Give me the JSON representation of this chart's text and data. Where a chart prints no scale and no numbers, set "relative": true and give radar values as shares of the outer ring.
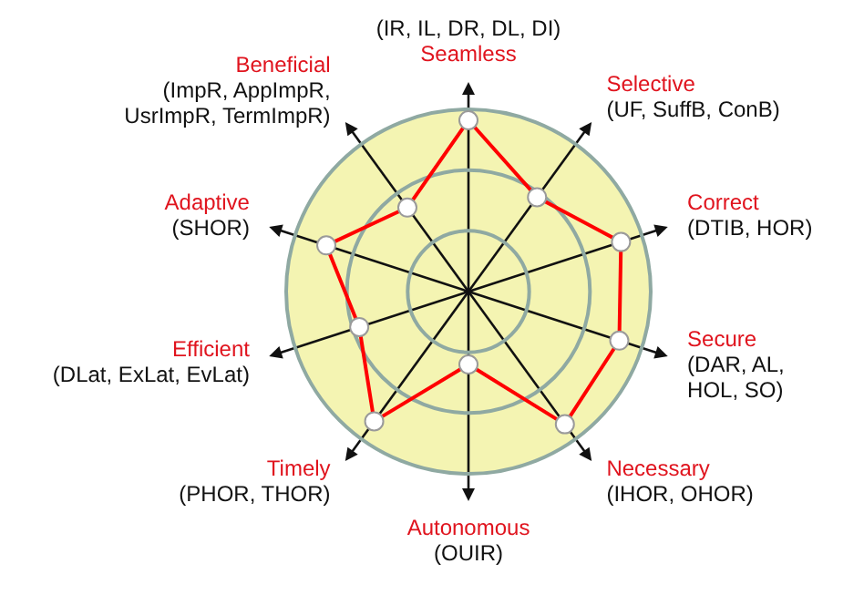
{
  "chart_data": {
    "type": "radar",
    "relative": true,
    "marker": "circle",
    "grid": true,
    "categories": [
      "Seamless",
      "Selective",
      "Correct",
      "Secure",
      "Necessary",
      "Autonomous",
      "Timely",
      "Efficient",
      "Adaptive",
      "Beneficial"
    ],
    "series": [
      {
        "color": "#ff0000",
        "values": [
          0.94,
          0.64,
          0.88,
          0.87,
          0.9,
          0.4,
          0.88,
          0.63,
          0.82,
          0.57
        ]
      }
    ],
    "annotations": [
      {
        "text": "(IR, IL, DR, DL, DI)",
        "x": "Seamless"
      },
      {
        "text": "(UF, SuffB, ConB)",
        "x": "Selective"
      },
      {
        "text": "(DTIB, HOR)",
        "x": "Correct"
      },
      {
        "text": "(DAR, AL,\nHOL, SO)",
        "x": "Secure"
      },
      {
        "text": "(IHOR, OHOR)",
        "x": "Necessary"
      },
      {
        "text": "(OUIR)",
        "x": "Autonomous"
      },
      {
        "text": "(PHOR, THOR)",
        "x": "Timely"
      },
      {
        "text": "(DLat, ExLat, EvLat)",
        "x": "Efficient"
      },
      {
        "text": "(SHOR)",
        "x": "Adaptive"
      },
      {
        "text": "(ImpR, AppImpR,\nUsrImpR, TermImpR)",
        "x": "Beneficial"
      }
    ]
  }
}
